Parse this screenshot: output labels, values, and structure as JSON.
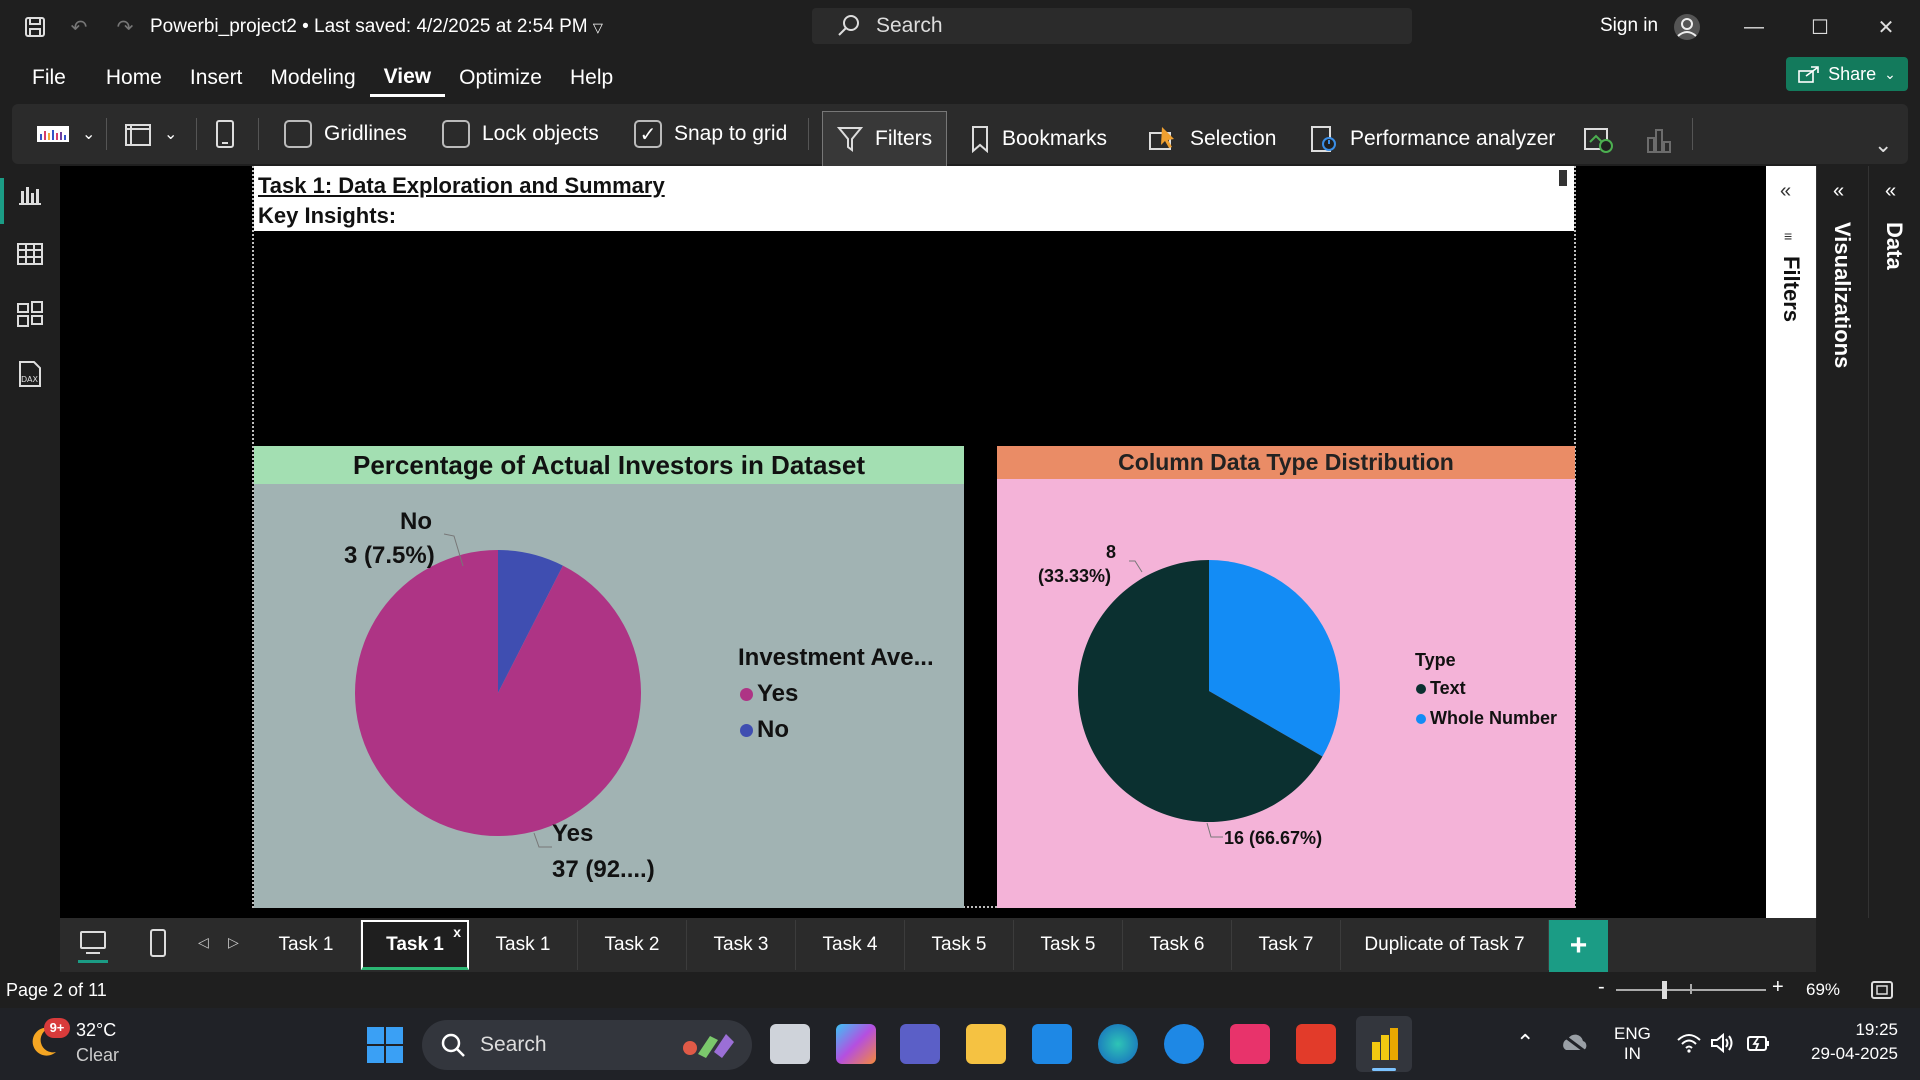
{
  "titlebar": {
    "doc_title": "Powerbi_project2 • Last saved: 4/2/2025 at 2:54 PM",
    "search_placeholder": "Search",
    "signin": "Sign in"
  },
  "menu": [
    "File",
    "Home",
    "Insert",
    "Modeling",
    "View",
    "Optimize",
    "Help"
  ],
  "menu_active": "View",
  "share_label": "Share",
  "ribbon": {
    "gridlines": "Gridlines",
    "lock_objects": "Lock objects",
    "snap_to_grid": "Snap to grid",
    "filters": "Filters",
    "bookmarks": "Bookmarks",
    "selection": "Selection",
    "performance": "Performance analyzer",
    "gridlines_checked": false,
    "lock_checked": false,
    "snap_checked": true
  },
  "report": {
    "task_title": "Task 1: Data Exploration and Summary",
    "key_insights": "Key Insights:"
  },
  "chart_data": [
    {
      "type": "pie",
      "title": "Percentage of Actual Investors in Dataset",
      "legend_title": "Investment Ave...",
      "categories": [
        "Yes",
        "No"
      ],
      "values": [
        37,
        3
      ],
      "labels": [
        {
          "name": "Yes",
          "value": "37 (92....)"
        },
        {
          "name": "No",
          "value": "3 (7.5%)"
        }
      ],
      "colors": [
        "#ae3485",
        "#3f4eb1"
      ],
      "legend_position": "right"
    },
    {
      "type": "pie",
      "title": "Column Data Type Distribution",
      "legend_title": "Type",
      "categories": [
        "Text",
        "Whole Number"
      ],
      "values": [
        16,
        8
      ],
      "labels": [
        {
          "name": "Text",
          "value": "16 (66.67%)"
        },
        {
          "name": "Whole Number",
          "value_line1": "8",
          "value_line2": "(33.33%)"
        }
      ],
      "colors": [
        "#0b3030",
        "#138cf5"
      ],
      "legend_position": "right"
    }
  ],
  "panes": {
    "filters": "Filters",
    "visualizations": "Visualizations",
    "data": "Data"
  },
  "tabs": [
    "Task 1",
    "Task 1",
    "Task 1",
    "Task 2",
    "Task 3",
    "Task 4",
    "Task 5",
    "Task 5",
    "Task 6",
    "Task 7",
    "Duplicate of Task 7"
  ],
  "active_tab_index": 1,
  "tab_close": "x",
  "add_tab": "+",
  "status": {
    "page": "Page 2 of 11",
    "zoom": "69%",
    "zoom_minus": "-",
    "zoom_plus": "+"
  },
  "taskbar": {
    "weather_temp": "32°C",
    "weather_cond": "Clear",
    "weather_badge": "9+",
    "search": "Search",
    "lang_1": "ENG",
    "lang_2": "IN",
    "time": "19:25",
    "date": "29-04-2025"
  },
  "colors": {
    "accent": "#1b9c85",
    "share": "#137a5c"
  }
}
